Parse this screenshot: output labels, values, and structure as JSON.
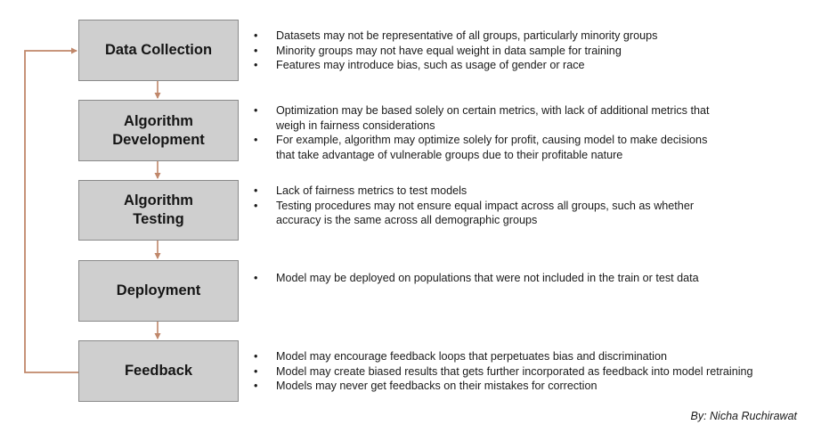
{
  "stages": [
    {
      "label": "Data Collection",
      "notes": [
        "Datasets may not be representative of all groups, particularly minority groups",
        "Minority groups may not have equal weight in data sample for training",
        "Features may introduce bias, such as usage of gender or race"
      ]
    },
    {
      "label": "Algorithm\nDevelopment",
      "notes": [
        "Optimization may be based solely on certain metrics, with lack of additional metrics that\nweigh in fairness considerations",
        "For example, algorithm may optimize solely for profit, causing model to make decisions\nthat take advantage of vulnerable groups due to their profitable nature"
      ]
    },
    {
      "label": "Algorithm\nTesting",
      "notes": [
        "Lack of fairness metrics to test models",
        "Testing procedures may not ensure equal impact across all groups, such as whether\naccuracy is the same across all demographic groups"
      ]
    },
    {
      "label": "Deployment",
      "notes": [
        "Model may be deployed on populations that were not included in the train or test data"
      ]
    },
    {
      "label": "Feedback",
      "notes": [
        "Model may encourage feedback loops that perpetuates bias and discrimination",
        "Model may create biased results that gets further incorporated as feedback into model retraining",
        "Models may never get feedbacks on their mistakes for correction"
      ]
    }
  ],
  "credit": "By: Nicha Ruchirawat",
  "colors": {
    "arrow": "#c0876a",
    "box_fill": "#cfcfcf",
    "box_border": "#8a8a8a"
  }
}
